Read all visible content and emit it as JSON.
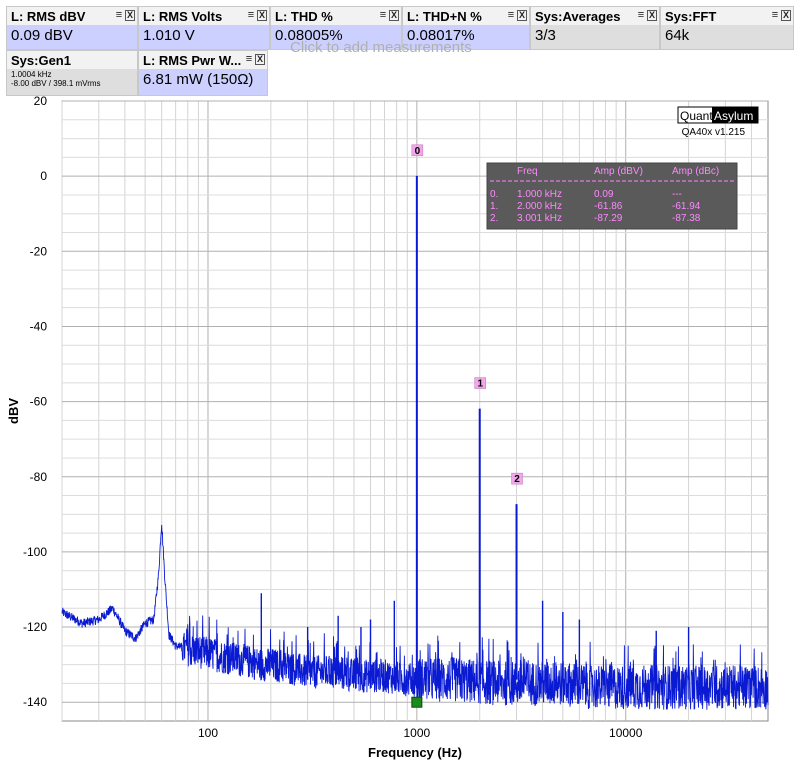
{
  "tiles": [
    {
      "title": "L: RMS dBV",
      "value": "0.09 dBV"
    },
    {
      "title": "L: RMS Volts",
      "value": "1.010 V"
    },
    {
      "title": "L: THD %",
      "value": "0.08005%"
    },
    {
      "title": "L: THD+N %",
      "value": "0.08017%"
    },
    {
      "title": "Sys:Averages",
      "value": "3/3"
    },
    {
      "title": "Sys:FFT",
      "value": "64k"
    },
    {
      "title": "L: RMS Pwr W...",
      "value": "6.81 mW (150Ω)"
    }
  ],
  "gen": {
    "title": "Sys:Gen1",
    "line1": "1.0004 kHz",
    "line2": "-8.00 dBV  / 398.1 mVrms"
  },
  "hint": "Click to add measurements",
  "icons": {
    "menu": "≡",
    "close": "X"
  },
  "brand": {
    "left": "Quant",
    "right": "Asylum",
    "version": "QA40x v1.215"
  },
  "peak_table": {
    "headers": [
      "Freq",
      "Amp (dBV)",
      "Amp (dBc)"
    ],
    "rows": [
      [
        "0.",
        "1.000 kHz",
        "0.09",
        "---"
      ],
      [
        "1.",
        "2.000 kHz",
        "-61.86",
        "-61.94"
      ],
      [
        "2.",
        "3.001 kHz",
        "-87.29",
        "-87.38"
      ]
    ]
  },
  "colors": {
    "trace": "#0a1ad2",
    "marker_bg": "#f0a8e8",
    "table_bg": "#5a5a5a",
    "table_text": "#ff88ff",
    "green_marker": "#1a8a1a"
  },
  "chart_data": {
    "type": "line",
    "xlabel": "Frequency (Hz)",
    "ylabel": "dBV",
    "xscale": "log",
    "xlim": [
      20,
      48000
    ],
    "ylim": [
      -145,
      20
    ],
    "yticks": [
      20,
      0,
      -20,
      -40,
      -60,
      -80,
      -100,
      -120,
      -140
    ],
    "xticks": [
      100,
      1000,
      10000
    ],
    "grid": true,
    "markers": [
      {
        "label": "0",
        "x": 1000,
        "y": 0.09
      },
      {
        "label": "1",
        "x": 2000,
        "y": -61.86
      },
      {
        "label": "2",
        "x": 3001,
        "y": -87.29
      }
    ],
    "series": [
      {
        "x": [
          20,
          25,
          30,
          35,
          40,
          45,
          50,
          55,
          58,
          60,
          62,
          65,
          70,
          80,
          100,
          120,
          150,
          180,
          200,
          250,
          300,
          400,
          500,
          700,
          900,
          1000,
          1100,
          1500,
          2000,
          2500,
          3001,
          3500,
          4000,
          5000,
          7000,
          10000,
          15000,
          20000,
          30000,
          40000,
          48000
        ],
        "y": [
          -116,
          -119,
          -118,
          -115,
          -121,
          -123,
          -119,
          -118,
          -106,
          -92,
          -106,
          -122,
          -125,
          -126,
          -127,
          -128,
          -129,
          -130,
          -130,
          -131,
          -132,
          -132,
          -133,
          -133,
          -134,
          0.09,
          -134,
          -134,
          -61.86,
          -135,
          -87.29,
          -135,
          -135,
          -135,
          -136,
          -136,
          -136,
          -136,
          -136,
          -136,
          -136
        ]
      }
    ],
    "spurs": [
      {
        "x": 180,
        "y": -111
      },
      {
        "x": 300,
        "y": -120
      },
      {
        "x": 420,
        "y": -117
      },
      {
        "x": 540,
        "y": -120
      },
      {
        "x": 600,
        "y": -118
      },
      {
        "x": 780,
        "y": -113
      },
      {
        "x": 4000,
        "y": -113
      },
      {
        "x": 5000,
        "y": -116
      },
      {
        "x": 6000,
        "y": -118
      },
      {
        "x": 14000,
        "y": -121
      },
      {
        "x": 20000,
        "y": -120
      }
    ]
  }
}
